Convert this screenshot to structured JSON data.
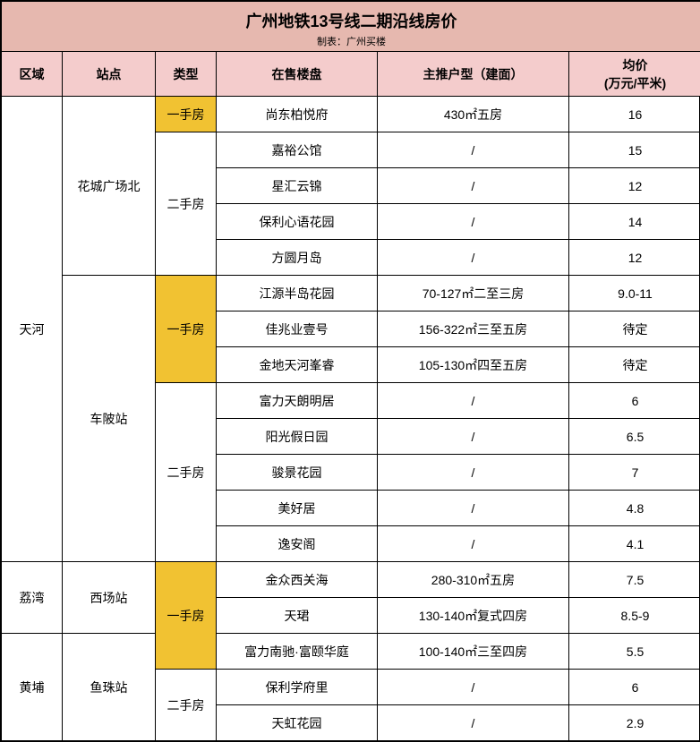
{
  "title": "广州地铁13号线二期沿线房价",
  "subtitle": "制表：广州买楼",
  "colors": {
    "title_bg": "#e6b8af",
    "header_bg": "#f4cccc",
    "primary_type_bg": "#f1c232",
    "border": "#000000",
    "text": "#000000"
  },
  "headers": {
    "region": "区域",
    "station": "站点",
    "type": "类型",
    "project": "在售楼盘",
    "layout": "主推户型（建面）",
    "price_line1": "均价",
    "price_line2": "(万元/平米)"
  },
  "type_labels": {
    "primary": "一手房",
    "secondary": "二手房"
  },
  "regions": {
    "tianhe": "天河",
    "liwan": "荔湾",
    "huangpu": "黄埔"
  },
  "stations": {
    "huacheng": "花城广场北",
    "chebei": "车陂站",
    "xichang": "西场站",
    "yuzhu": "鱼珠站"
  },
  "rows": [
    {
      "project": "尚东柏悦府",
      "layout": "430㎡五房",
      "price": "16"
    },
    {
      "project": "嘉裕公馆",
      "layout": "/",
      "price": "15"
    },
    {
      "project": "星汇云锦",
      "layout": "/",
      "price": "12"
    },
    {
      "project": "保利心语花园",
      "layout": "/",
      "price": "14"
    },
    {
      "project": "方圆月岛",
      "layout": "/",
      "price": "12"
    },
    {
      "project": "江源半岛花园",
      "layout": "70-127㎡二至三房",
      "price": "9.0-11"
    },
    {
      "project": "佳兆业壹号",
      "layout": "156-322㎡三至五房",
      "price": "待定"
    },
    {
      "project": "金地天河峯睿",
      "layout": "105-130㎡四至五房",
      "price": "待定"
    },
    {
      "project": "富力天朗明居",
      "layout": "/",
      "price": "6"
    },
    {
      "project": "阳光假日园",
      "layout": "/",
      "price": "6.5"
    },
    {
      "project": "骏景花园",
      "layout": "/",
      "price": "7"
    },
    {
      "project": "美好居",
      "layout": "/",
      "price": "4.8"
    },
    {
      "project": "逸安阁",
      "layout": "/",
      "price": "4.1"
    },
    {
      "project": "金众西关海",
      "layout": "280-310㎡五房",
      "price": "7.5"
    },
    {
      "project": "天珺",
      "layout": "130-140㎡复式四房",
      "price": "8.5-9"
    },
    {
      "project": "富力南驰·富颐华庭",
      "layout": "100-140㎡三至四房",
      "price": "5.5"
    },
    {
      "project": "保利学府里",
      "layout": "/",
      "price": "6"
    },
    {
      "project": "天虹花园",
      "layout": "/",
      "price": "2.9"
    }
  ]
}
